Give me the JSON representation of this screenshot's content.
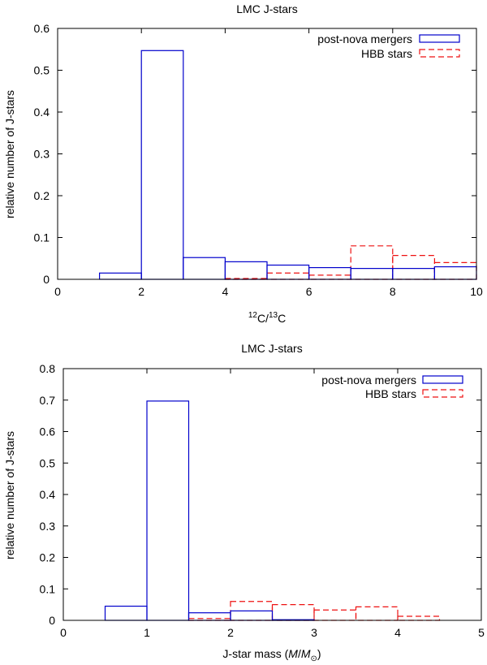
{
  "chart_data": [
    {
      "type": "histogram",
      "title": "LMC J-stars",
      "xlabel": {
        "sup1": "12",
        "mid": "C/",
        "sup2": "13",
        "tail": "C"
      },
      "ylabel": "relative number of J-stars",
      "xlim": [
        0,
        10
      ],
      "ylim": [
        0,
        0.6
      ],
      "xticks": [
        "0",
        "2",
        "4",
        "6",
        "8",
        "10"
      ],
      "yticks": [
        "0",
        "0.1",
        "0.2",
        "0.3",
        "0.4",
        "0.5",
        "0.6"
      ],
      "legend_position": "top-right",
      "bins": [
        1,
        2,
        3,
        4,
        5,
        6,
        7,
        8,
        9,
        10
      ],
      "series": [
        {
          "name": "post-nova mergers",
          "color": "#0000cc",
          "style": "solid",
          "values": [
            0.015,
            0.547,
            0.052,
            0.042,
            0.034,
            0.028,
            0.026,
            0.026,
            0.03
          ]
        },
        {
          "name": "HBB stars",
          "color": "#ee1111",
          "style": "dashed",
          "values": [
            0,
            0,
            0,
            0.002,
            0.015,
            0.01,
            0.08,
            0.057,
            0.04
          ]
        }
      ]
    },
    {
      "type": "histogram",
      "title": "LMC J-stars",
      "xlabel": {
        "pre": "J-star mass (",
        "m": "M",
        "slash": "/",
        "msun": "M",
        "sun": "⊙",
        "post": ")"
      },
      "ylabel": "relative number of J-stars",
      "xlim": [
        0,
        5
      ],
      "ylim": [
        0,
        0.8
      ],
      "xticks": [
        "0",
        "1",
        "2",
        "3",
        "4",
        "5"
      ],
      "yticks": [
        "0",
        "0.1",
        "0.2",
        "0.3",
        "0.4",
        "0.5",
        "0.6",
        "0.7",
        "0.8"
      ],
      "legend_position": "top-right",
      "bins": [
        0.5,
        1.0,
        1.5,
        2.0,
        2.5,
        3.0,
        3.5,
        4.0,
        4.5
      ],
      "series": [
        {
          "name": "post-nova mergers",
          "color": "#0000cc",
          "style": "solid",
          "values": [
            0.045,
            0.697,
            0.024,
            0.03,
            0.002,
            0,
            0,
            0
          ]
        },
        {
          "name": "HBB stars",
          "color": "#ee1111",
          "style": "dashed",
          "values": [
            0,
            0,
            0.006,
            0.06,
            0.05,
            0.033,
            0.043,
            0.013
          ]
        }
      ]
    }
  ]
}
